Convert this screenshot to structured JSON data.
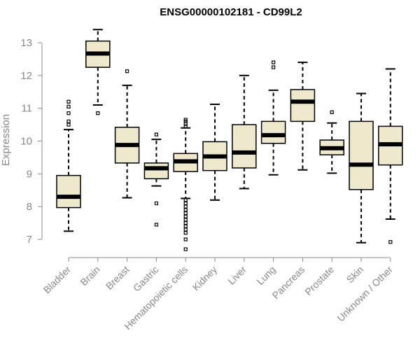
{
  "chart_data": {
    "type": "boxplot",
    "title": "ENSG00000102181 - CD99L2",
    "xlabel": "",
    "ylabel": "Expression",
    "ylim": [
      6.6,
      13.6
    ],
    "yticks": [
      7,
      8,
      9,
      10,
      11,
      12,
      13
    ],
    "box_color": "#EEE8CD",
    "categories": [
      "Bladder",
      "Brain",
      "Breast",
      "Gastric",
      "Hematopoietic cells",
      "Kidney",
      "Liver",
      "Lung",
      "Pancreas",
      "Prostate",
      "Skin",
      "Unknown / Other"
    ],
    "boxes": [
      {
        "min": 7.25,
        "q1": 7.97,
        "median": 8.3,
        "q3": 8.95,
        "max": 10.35,
        "outliers": [
          10.5,
          10.6,
          10.85,
          11.05,
          11.2
        ]
      },
      {
        "min": 11.1,
        "q1": 12.25,
        "median": 12.67,
        "q3": 13.05,
        "max": 13.4,
        "outliers": [
          10.85
        ]
      },
      {
        "min": 8.27,
        "q1": 9.33,
        "median": 9.88,
        "q3": 10.42,
        "max": 11.7,
        "outliers": [
          12.13
        ]
      },
      {
        "min": 8.63,
        "q1": 8.85,
        "median": 9.17,
        "q3": 9.33,
        "max": 10.05,
        "outliers": [
          10.2,
          8.1,
          7.45
        ]
      },
      {
        "min": 8.25,
        "q1": 9.07,
        "median": 9.38,
        "q3": 9.62,
        "max": 10.4,
        "outliers": [
          10.45,
          10.52,
          10.6,
          10.65,
          8.2,
          8.1,
          8.0,
          7.9,
          7.8,
          7.7,
          7.6,
          7.5,
          7.4,
          7.3,
          7.2,
          7.0,
          6.7
        ]
      },
      {
        "min": 8.2,
        "q1": 9.1,
        "median": 9.53,
        "q3": 9.98,
        "max": 11.12,
        "outliers": []
      },
      {
        "min": 8.55,
        "q1": 9.18,
        "median": 9.65,
        "q3": 10.5,
        "max": 12.0,
        "outliers": []
      },
      {
        "min": 8.97,
        "q1": 9.93,
        "median": 10.18,
        "q3": 10.6,
        "max": 11.55,
        "outliers": [
          12.25,
          12.4
        ]
      },
      {
        "min": 9.12,
        "q1": 10.6,
        "median": 11.2,
        "q3": 11.57,
        "max": 12.4,
        "outliers": []
      },
      {
        "min": 9.02,
        "q1": 9.58,
        "median": 9.78,
        "q3": 10.03,
        "max": 10.55,
        "outliers": [
          10.88
        ]
      },
      {
        "min": 6.9,
        "q1": 8.52,
        "median": 9.28,
        "q3": 10.6,
        "max": 11.45,
        "outliers": []
      },
      {
        "min": 7.62,
        "q1": 9.27,
        "median": 9.9,
        "q3": 10.45,
        "max": 12.2,
        "outliers": [
          6.92
        ]
      }
    ]
  }
}
